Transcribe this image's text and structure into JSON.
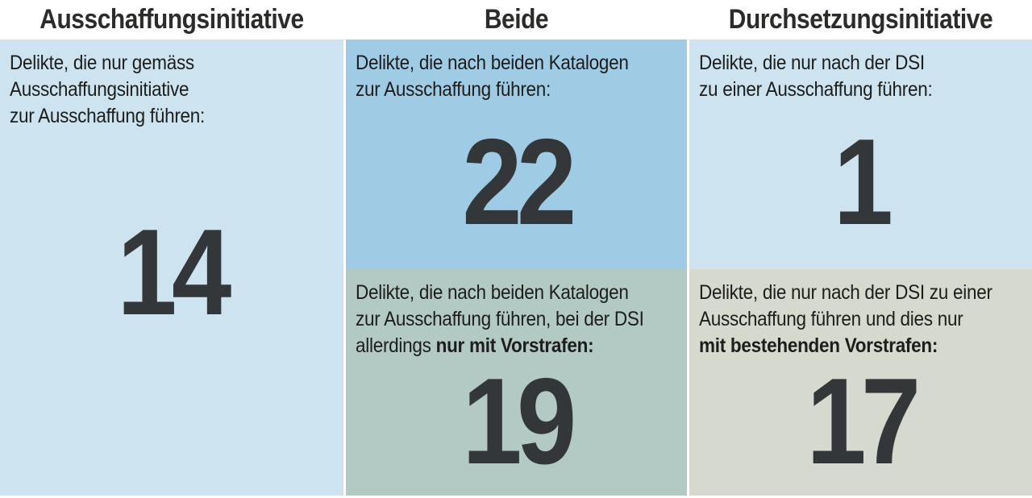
{
  "colors": {
    "background": "#ffffff",
    "light_blue": "#cde3f0",
    "medium_blue": "#a0cbe5",
    "green_grey": "#b3c9c4",
    "beige_grey": "#d6d9ce",
    "heading_text": "#2b2b29",
    "body_text": "#1d1d1b",
    "number_text": "#33373a"
  },
  "columns": [
    {
      "header": "Ausschaffungsinitiative",
      "cells": [
        {
          "text": "Delikte, die nur gemäss\nAusschaffungsinitiative\nzur Ausschaffung führen:",
          "value": "14"
        }
      ]
    },
    {
      "header": "Beide",
      "cells": [
        {
          "text": "Delikte, die nach beiden Katalogen\nzur Ausschaffung führen:",
          "value": "22"
        },
        {
          "text_regular": "Delikte, die nach beiden Katalogen\nzur Ausschaffung führen, bei der DSI\nallerdings ",
          "text_bold": "nur mit Vorstrafen:",
          "value": "19"
        }
      ]
    },
    {
      "header": "Durchsetzungsinitiative",
      "cells": [
        {
          "text": "Delikte, die nur nach der DSI\nzu einer Ausschaffung führen:",
          "value": "1"
        },
        {
          "text_regular": "Delikte, die nur nach der DSI zu einer\nAusschaffung führen und dies nur\n",
          "text_bold": "mit bestehenden Vorstrafen:",
          "value": "17"
        }
      ]
    }
  ],
  "chart_data": {
    "type": "table",
    "title": "",
    "columns": [
      "Ausschaffungsinitiative",
      "Beide",
      "Durchsetzungsinitiative"
    ],
    "groups": [
      {
        "column": "Ausschaffungsinitiative",
        "label": "Delikte, die nur gemäss Ausschaffungsinitiative zur Ausschaffung führen",
        "value": 14
      },
      {
        "column": "Beide",
        "label": "Delikte, die nach beiden Katalogen zur Ausschaffung führen",
        "value": 22
      },
      {
        "column": "Beide",
        "label": "Delikte, die nach beiden Katalogen zur Ausschaffung führen, bei der DSI allerdings nur mit Vorstrafen",
        "value": 19
      },
      {
        "column": "Durchsetzungsinitiative",
        "label": "Delikte, die nur nach der DSI zu einer Ausschaffung führen",
        "value": 1
      },
      {
        "column": "Durchsetzungsinitiative",
        "label": "Delikte, die nur nach der DSI zu einer Ausschaffung führen und dies nur mit bestehenden Vorstrafen",
        "value": 17
      }
    ]
  }
}
